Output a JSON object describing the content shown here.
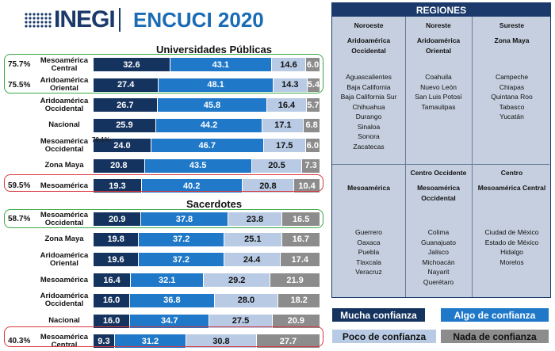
{
  "header": {
    "logo_text": "INEGI",
    "survey_title": "ENCUCI 2020"
  },
  "colors": {
    "mucha": "#15335f",
    "algo": "#1f78c8",
    "poco": "#b9cbe4",
    "nada": "#8c8c8c",
    "green_box": "#39a845",
    "red_box": "#d9363e"
  },
  "legend": {
    "mucha": "Mucha confianza",
    "algo": "Algo de confianza",
    "poco": "Poco de confianza",
    "nada": "Nada de confianza"
  },
  "chart_data": [
    {
      "type": "bar",
      "stacked": true,
      "orientation": "horizontal",
      "title": "Universidades Públicas",
      "categories": [
        "Mesoamérica Central",
        "Aridoamérica Oriental",
        "Aridoamérica Occidental",
        "Nacional",
        "Mesoamérica Occidental",
        "Zona Maya",
        "Mesoamérica"
      ],
      "series": [
        {
          "name": "Mucha confianza",
          "values": [
            32.6,
            27.4,
            26.7,
            25.9,
            24.0,
            20.8,
            19.3
          ]
        },
        {
          "name": "Algo de confianza",
          "values": [
            43.1,
            48.1,
            45.8,
            44.2,
            46.7,
            43.5,
            40.2
          ]
        },
        {
          "name": "Poco de confianza",
          "values": [
            14.6,
            14.3,
            16.4,
            17.1,
            17.5,
            20.5,
            20.8
          ]
        },
        {
          "name": "Nada de confianza",
          "values": [
            6.0,
            5.4,
            5.7,
            6.8,
            6.0,
            7.3,
            10.4
          ]
        }
      ],
      "highlights": [
        {
          "category": "Mesoamérica Central",
          "label": "75.7%",
          "color": "green"
        },
        {
          "category": "Aridoamérica Oriental",
          "label": "75.5%",
          "color": "green"
        },
        {
          "category": "Mesoamérica",
          "label": "59.5%",
          "color": "red"
        }
      ],
      "overlap_text": "70.1%"
    },
    {
      "type": "bar",
      "stacked": true,
      "orientation": "horizontal",
      "title": "Sacerdotes",
      "categories": [
        "Mesoamérica Occidental",
        "Zona Maya",
        "Aridoamérica Oriental",
        "Mesoamérica",
        "Aridoamérica Occidental",
        "Nacional",
        "Mesoamérica Central"
      ],
      "series": [
        {
          "name": "Mucha confianza",
          "values": [
            20.9,
            19.8,
            19.6,
            16.4,
            16.0,
            16.0,
            9.3
          ]
        },
        {
          "name": "Algo de confianza",
          "values": [
            37.8,
            37.2,
            37.2,
            32.1,
            36.8,
            34.7,
            31.2
          ]
        },
        {
          "name": "Poco de confianza",
          "values": [
            23.8,
            25.1,
            24.4,
            29.2,
            28.0,
            27.5,
            30.8
          ]
        },
        {
          "name": "Nada de confianza",
          "values": [
            16.5,
            16.7,
            17.4,
            21.9,
            18.2,
            20.9,
            27.7
          ]
        }
      ],
      "highlights": [
        {
          "category": "Mesoamérica Occidental",
          "label": "58.7%",
          "color": "green"
        },
        {
          "category": "Mesoamérica Central",
          "label": "40.3%",
          "color": "red"
        }
      ]
    }
  ],
  "regions": {
    "title": "REGIONES",
    "cells": [
      {
        "zone": "Noroeste",
        "name": "Aridoamérica Occidental",
        "states": [
          "Aguascalientes",
          "Baja California",
          "Baja California Sur",
          "Chihuahua",
          "Durango",
          "Sinaloa",
          "Sonora",
          "Zacatecas"
        ]
      },
      {
        "zone": "Noreste",
        "name": "Aridoamérica Oriental",
        "states": [
          "Coahuila",
          "Nuevo León",
          "San Luis Potosí",
          "Tamaulipas"
        ]
      },
      {
        "zone": "Sureste",
        "name": "Zona Maya",
        "states": [
          "Campeche",
          "Chiapas",
          "Quintana Roo",
          "Tabasco",
          "Yucatán"
        ]
      },
      {
        "zone": "",
        "name": "Mesoamérica",
        "states": [
          "Guerrero",
          "Oaxaca",
          "Puebla",
          "Tlaxcala",
          "Veracruz"
        ]
      },
      {
        "zone": "Centro Occidente",
        "name": "Mesoamérica Occidental",
        "states": [
          "Colima",
          "Guanajuato",
          "Jalisco",
          "Michoacán",
          "Nayarit",
          "Querétaro"
        ]
      },
      {
        "zone": "Centro",
        "name": "Mesoamérica Central",
        "states": [
          "Ciudad de México",
          "Estado de México",
          "Hidalgo",
          "Morelos"
        ]
      }
    ]
  }
}
